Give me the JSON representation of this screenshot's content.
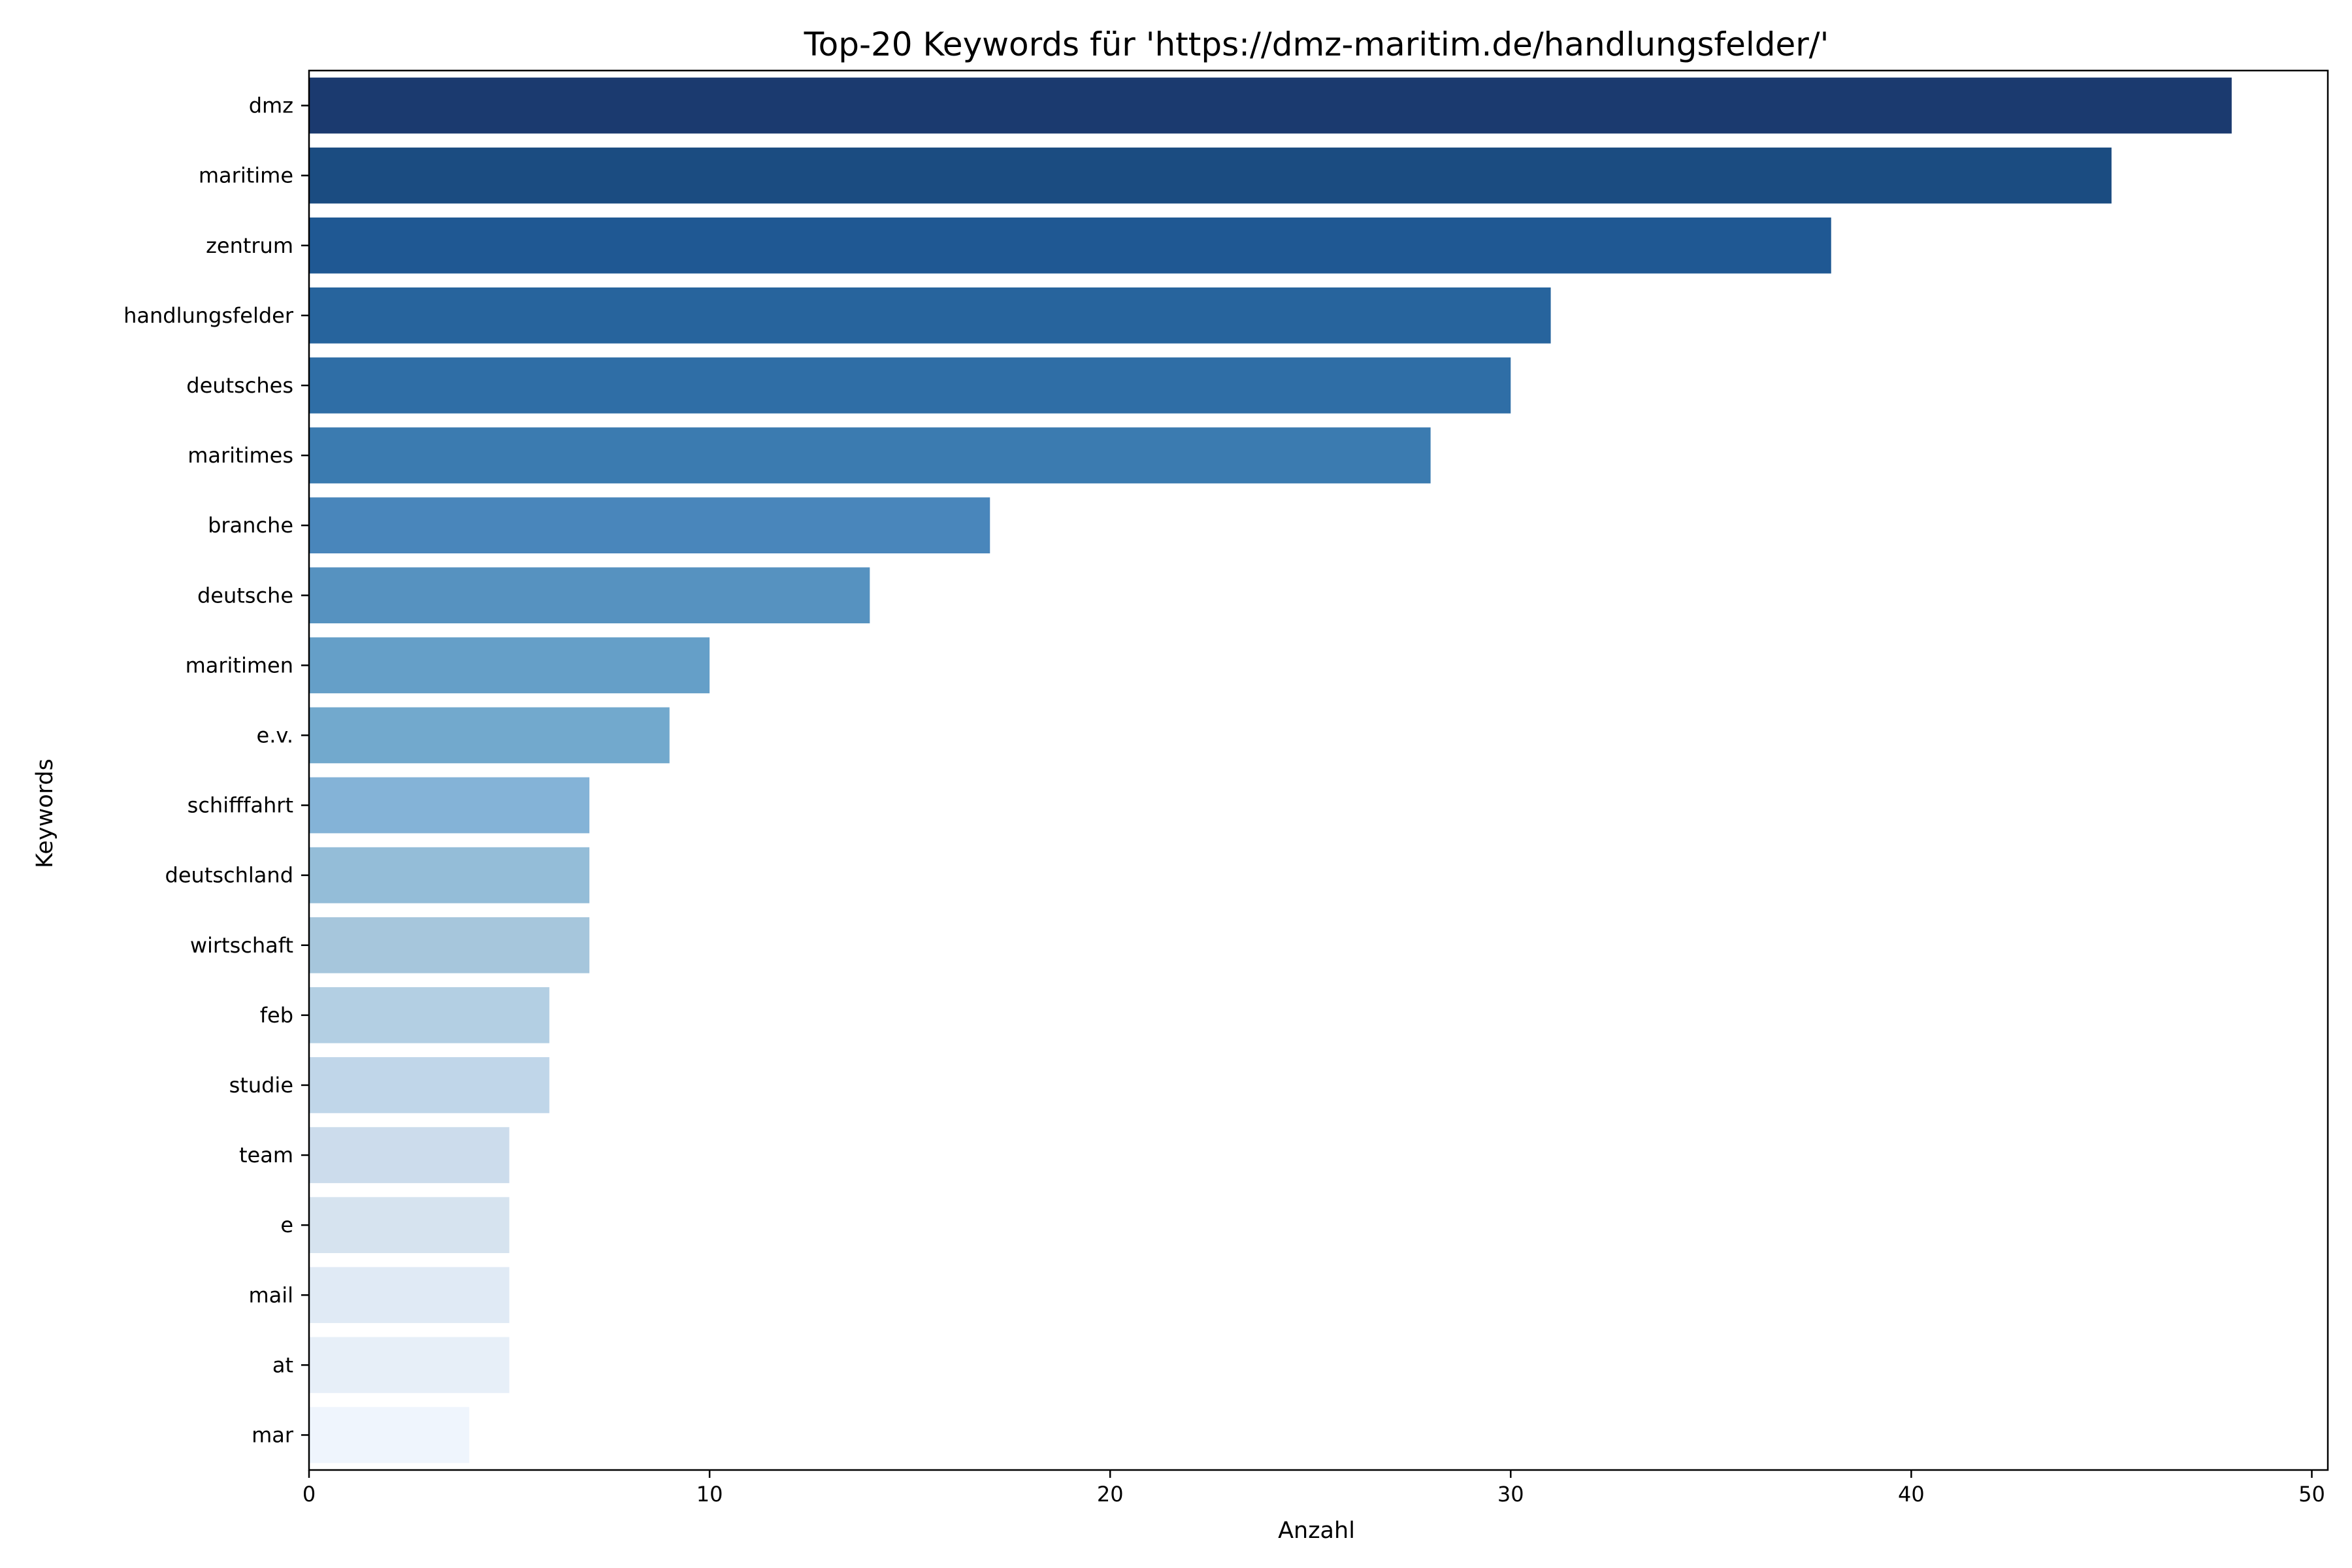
{
  "chart_data": {
    "type": "bar",
    "orientation": "horizontal",
    "title": "Top-20 Keywords für 'https://dmz-maritim.de/handlungsfelder/'",
    "xlabel": "Anzahl",
    "ylabel": "Keywords",
    "xlim": [
      0,
      50.4
    ],
    "xticks": [
      0,
      10,
      20,
      30,
      40,
      50
    ],
    "grid": false,
    "legend": "none",
    "palette": "Blues (dark to light)",
    "categories": [
      "dmz",
      "maritime",
      "zentrum",
      "handlungsfelder",
      "deutsches",
      "maritimes",
      "branche",
      "deutsche",
      "maritimen",
      "e.v.",
      "schifffahrt",
      "deutschland",
      "wirtschaft",
      "feb",
      "studie",
      "team",
      "e",
      "mail",
      "at",
      "mar"
    ],
    "values": [
      48,
      45,
      38,
      31,
      30,
      28,
      17,
      14,
      10,
      9,
      7,
      7,
      7,
      6,
      6,
      5,
      5,
      5,
      5,
      4
    ],
    "colors": [
      "#1b3a6f",
      "#1b4c81",
      "#1f5893",
      "#27649d",
      "#2f6ea6",
      "#3b7bb0",
      "#4986bb",
      "#5692c0",
      "#659fc8",
      "#72a9cd",
      "#84b3d7",
      "#94bdd8",
      "#a6c6dc",
      "#b3cfe3",
      "#c0d6e9",
      "#ccdcec",
      "#d6e3ef",
      "#e0eaf5",
      "#e7eff8",
      "#eff5fd"
    ]
  }
}
